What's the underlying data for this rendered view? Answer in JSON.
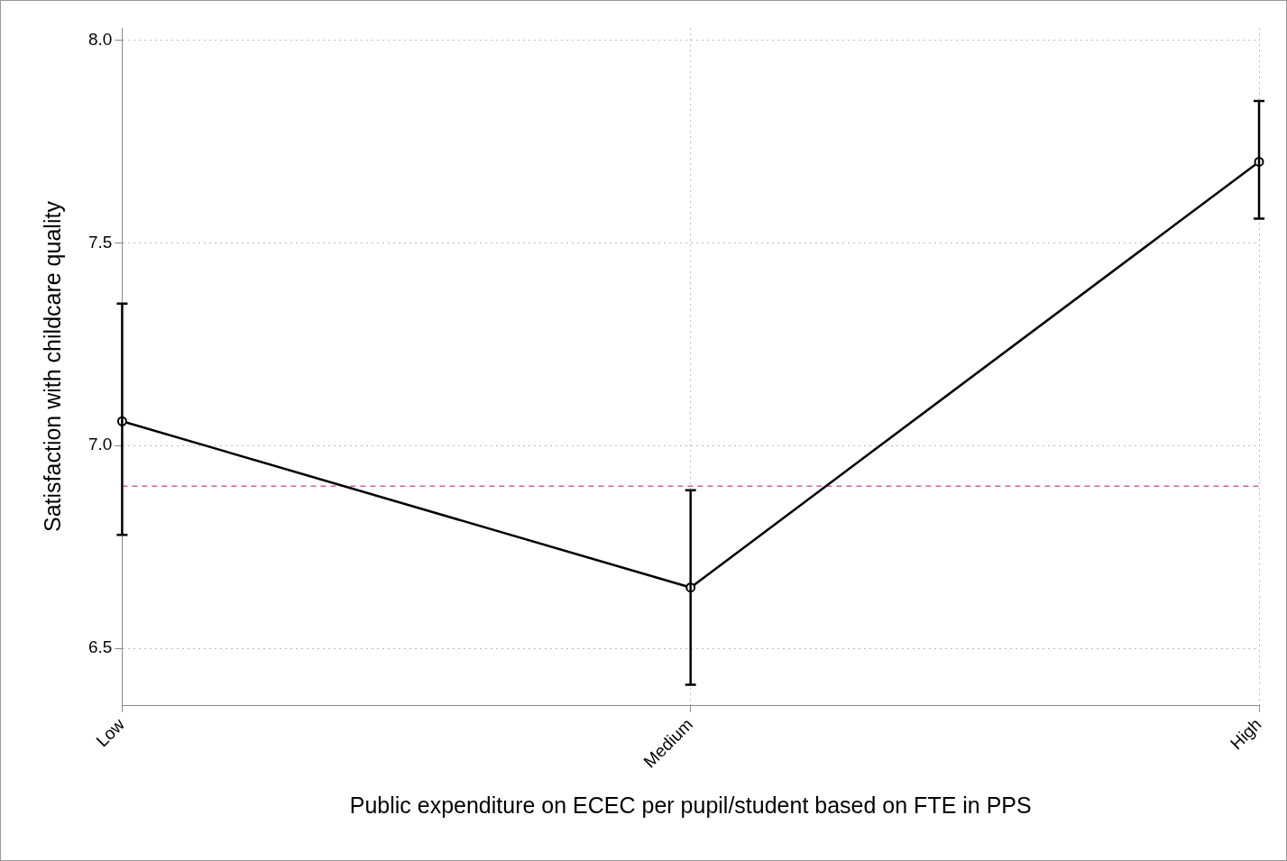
{
  "chart_data": {
    "type": "line",
    "xlabel": "Public expenditure on ECEC per pupil/student based on FTE in PPS",
    "ylabel": "Satisfaction with childcare quality",
    "categories": [
      "Low",
      "Medium",
      "High"
    ],
    "series": [
      {
        "color": "#000000",
        "values": [
          7.06,
          6.65,
          7.7
        ],
        "errors": [
          [
            6.78,
            7.35
          ],
          [
            6.41,
            6.89
          ],
          [
            7.56,
            7.85
          ]
        ]
      }
    ],
    "ylim": [
      6.36,
      8.03
    ],
    "yticks": [
      {
        "value": 6.5,
        "label": "6.5"
      },
      {
        "value": 7,
        "label": "7.0"
      },
      {
        "value": 7.5,
        "label": "7.5"
      },
      {
        "value": 8,
        "label": "8.0"
      }
    ],
    "ref_lines": [
      {
        "axis": "y",
        "value": 6.9,
        "color": "#d6609e",
        "line_style": "dashed"
      }
    ],
    "grid": true,
    "legend": false,
    "marker": "circle",
    "line_style": "solid"
  }
}
